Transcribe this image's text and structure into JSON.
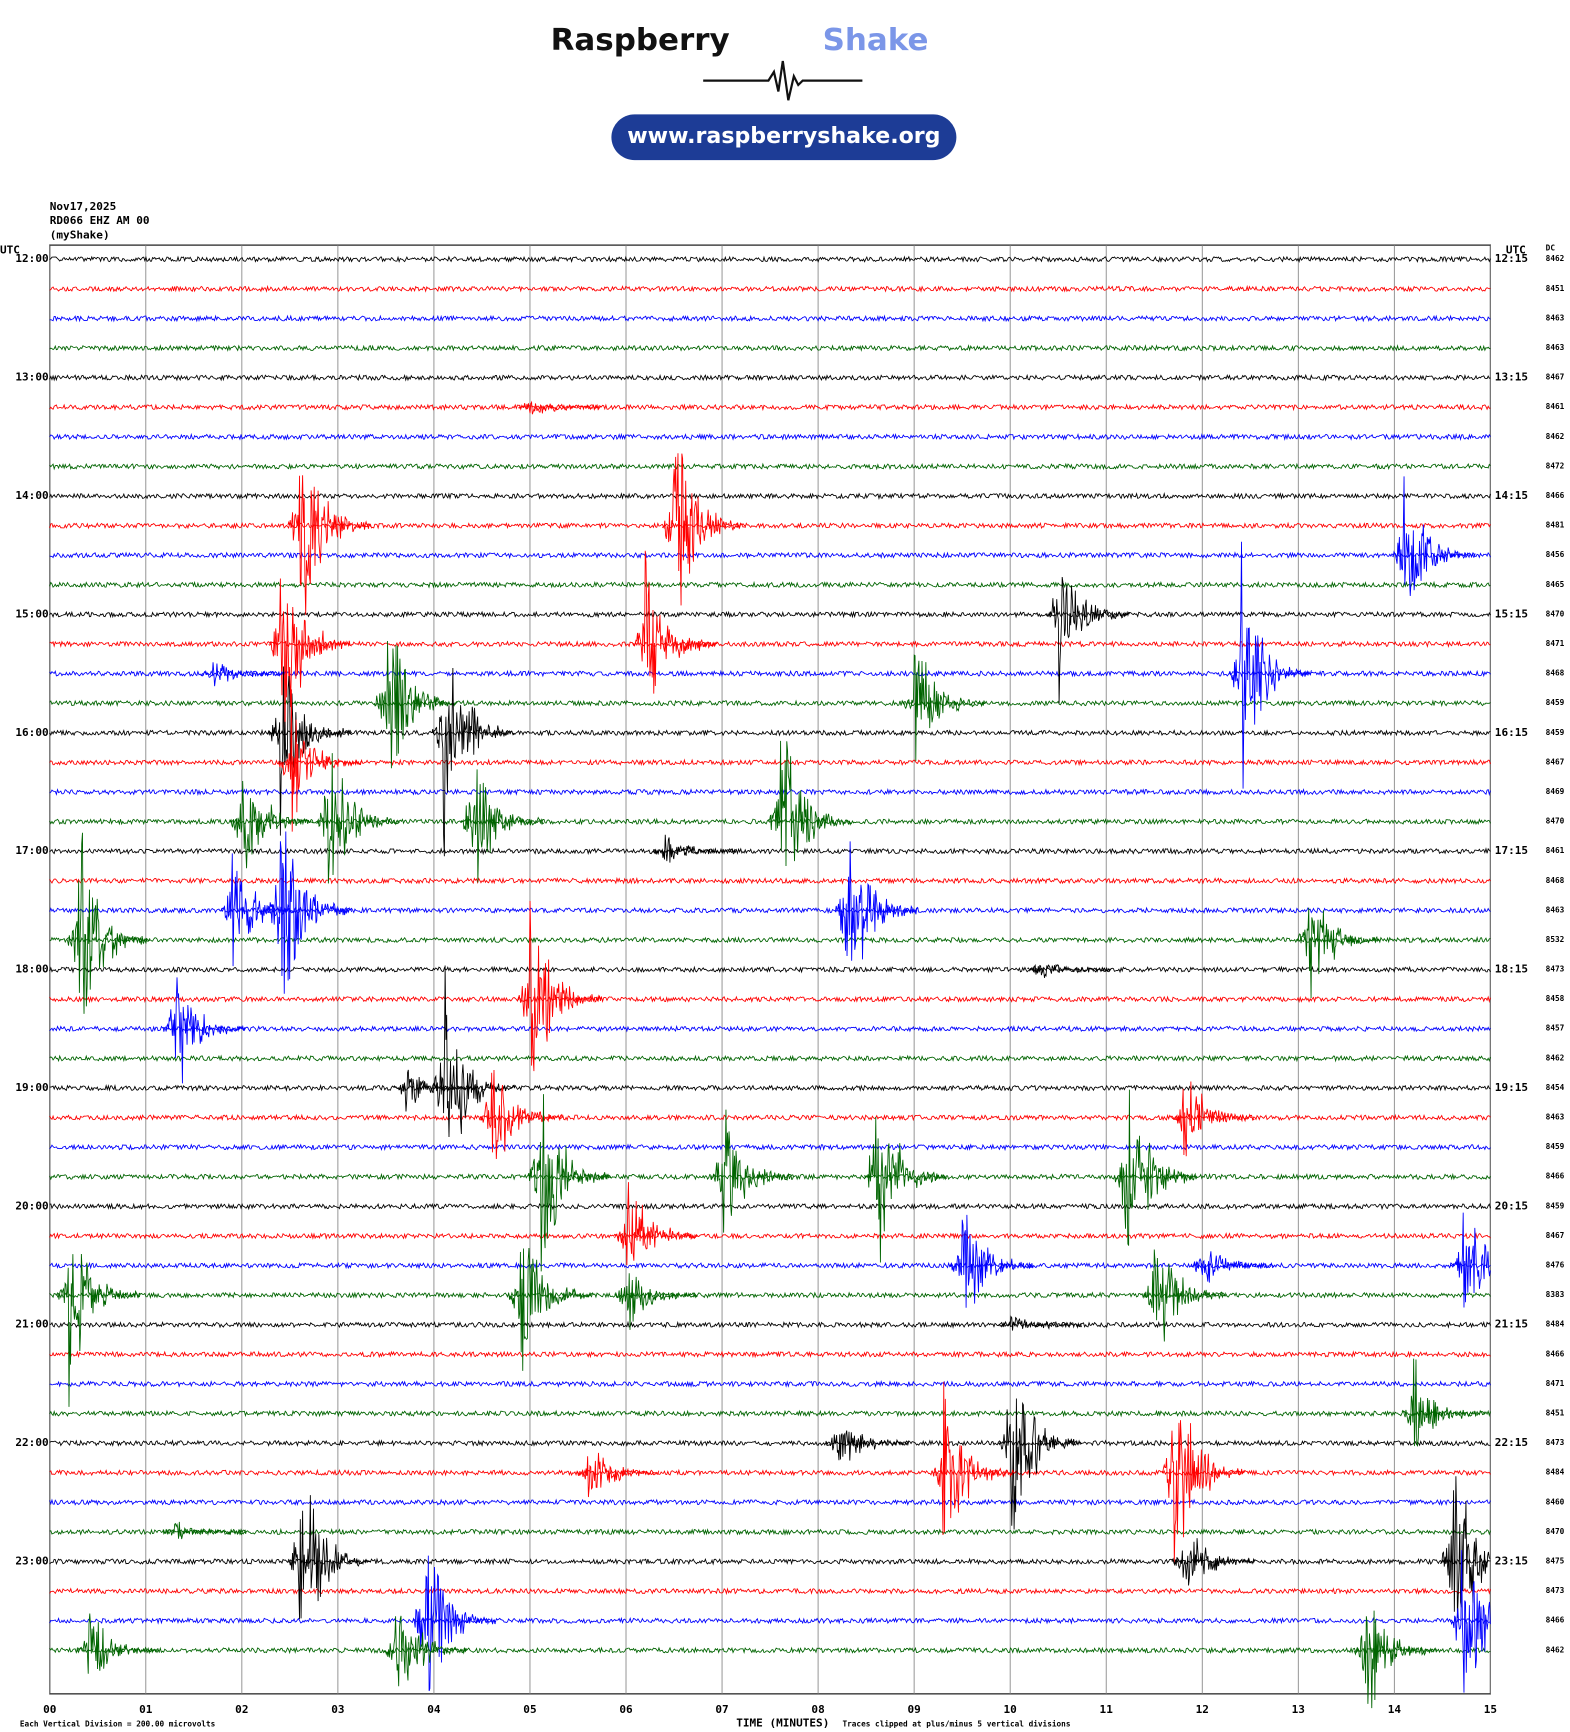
{
  "chart_data": {
    "type": "helicorder",
    "logo_word_1": "Raspberry",
    "logo_word_2": "Shake",
    "url": "www.raspberryshake.org",
    "date": "Nov17,2025",
    "station": "RD066 EHZ AM 00",
    "source": "(myShake)",
    "left_unit": "UTC",
    "right_unit": "UTC",
    "dc_header": "DC",
    "left_labels": [
      "12:00",
      "13:00",
      "14:00",
      "15:00",
      "16:00",
      "17:00",
      "18:00",
      "19:00",
      "20:00",
      "21:00",
      "22:00",
      "23:00"
    ],
    "right_labels": [
      "12:15",
      "13:15",
      "14:15",
      "15:15",
      "16:15",
      "17:15",
      "18:15",
      "19:15",
      "20:15",
      "21:15",
      "22:15",
      "23:15"
    ],
    "dc": [
      "8462",
      "8451",
      "8463",
      "8463",
      "8467",
      "8461",
      "8462",
      "8472",
      "8466",
      "8481",
      "8456",
      "8465",
      "8470",
      "8471",
      "8468",
      "8459",
      "8459",
      "8467",
      "8469",
      "8470",
      "8461",
      "8468",
      "8463",
      "8532",
      "8473",
      "8458",
      "8457",
      "8462",
      "8454",
      "8463",
      "8459",
      "8466",
      "8459",
      "8467",
      "8476",
      "8383",
      "8484",
      "8466",
      "8471",
      "8451",
      "8473",
      "8484",
      "8460",
      "8470",
      "8475",
      "8473",
      "8466",
      "8462"
    ],
    "colors": [
      "#000000",
      "#ff0000",
      "#0000ff",
      "#006400"
    ],
    "xlim": [
      0,
      15
    ],
    "xticks": [
      {
        "value": 0,
        "label": "00"
      },
      {
        "value": 1,
        "label": "01"
      },
      {
        "value": 2,
        "label": "02"
      },
      {
        "value": 3,
        "label": "03"
      },
      {
        "value": 4,
        "label": "04"
      },
      {
        "value": 5,
        "label": "05"
      },
      {
        "value": 6,
        "label": "06"
      },
      {
        "value": 7,
        "label": "07"
      },
      {
        "value": 8,
        "label": "08"
      },
      {
        "value": 9,
        "label": "09"
      },
      {
        "value": 10,
        "label": "10"
      },
      {
        "value": 11,
        "label": "11"
      },
      {
        "value": 12,
        "label": "12"
      },
      {
        "value": 13,
        "label": "13"
      },
      {
        "value": 14,
        "label": "14"
      },
      {
        "value": 15,
        "label": "15"
      }
    ],
    "xlabel": "TIME (MINUTES)",
    "footnote_left": "Each Vertical Division =  200.00 microvolts",
    "footnote_right": "Traces clipped at plus/minus 5 vertical divisions",
    "clip_divisions": 5,
    "noise_divisions": 0.08,
    "events": [
      {
        "row": 5,
        "minute": 5.0,
        "amplitude": 0.5
      },
      {
        "row": 9,
        "minute": 2.6,
        "amplitude": 5
      },
      {
        "row": 9,
        "minute": 6.5,
        "amplitude": 5
      },
      {
        "row": 10,
        "minute": 14.1,
        "amplitude": 4
      },
      {
        "row": 12,
        "minute": 10.5,
        "amplitude": 3.5
      },
      {
        "row": 13,
        "minute": 6.2,
        "amplitude": 4.5
      },
      {
        "row": 13,
        "minute": 2.4,
        "amplitude": 5
      },
      {
        "row": 14,
        "minute": 12.4,
        "amplitude": 5
      },
      {
        "row": 14,
        "minute": 1.7,
        "amplitude": 0.6
      },
      {
        "row": 15,
        "minute": 3.5,
        "amplitude": 5
      },
      {
        "row": 15,
        "minute": 9.0,
        "amplitude": 3
      },
      {
        "row": 16,
        "minute": 4.1,
        "amplitude": 5
      },
      {
        "row": 16,
        "minute": 2.4,
        "amplitude": 4
      },
      {
        "row": 17,
        "minute": 2.5,
        "amplitude": 3
      },
      {
        "row": 19,
        "minute": 7.6,
        "amplitude": 5
      },
      {
        "row": 19,
        "minute": 2.0,
        "amplitude": 3
      },
      {
        "row": 19,
        "minute": 2.9,
        "amplitude": 4
      },
      {
        "row": 19,
        "minute": 4.4,
        "amplitude": 4
      },
      {
        "row": 20,
        "minute": 6.4,
        "amplitude": 0.8
      },
      {
        "row": 22,
        "minute": 8.3,
        "amplitude": 5
      },
      {
        "row": 22,
        "minute": 2.4,
        "amplitude": 5
      },
      {
        "row": 22,
        "minute": 1.9,
        "amplitude": 3
      },
      {
        "row": 23,
        "minute": 0.3,
        "amplitude": 5
      },
      {
        "row": 23,
        "minute": 13.1,
        "amplitude": 3
      },
      {
        "row": 24,
        "minute": 10.3,
        "amplitude": 0.5
      },
      {
        "row": 25,
        "minute": 5.0,
        "amplitude": 5
      },
      {
        "row": 26,
        "minute": 1.3,
        "amplitude": 3
      },
      {
        "row": 28,
        "minute": 4.1,
        "amplitude": 5
      },
      {
        "row": 28,
        "minute": 3.7,
        "amplitude": 1
      },
      {
        "row": 29,
        "minute": 4.6,
        "amplitude": 3
      },
      {
        "row": 29,
        "minute": 11.8,
        "amplitude": 2.5
      },
      {
        "row": 31,
        "minute": 5.1,
        "amplitude": 5
      },
      {
        "row": 31,
        "minute": 8.6,
        "amplitude": 5
      },
      {
        "row": 31,
        "minute": 11.2,
        "amplitude": 5
      },
      {
        "row": 31,
        "minute": 7.0,
        "amplitude": 3
      },
      {
        "row": 33,
        "minute": 6.0,
        "amplitude": 3
      },
      {
        "row": 34,
        "minute": 9.5,
        "amplitude": 3
      },
      {
        "row": 34,
        "minute": 14.7,
        "amplitude": 3
      },
      {
        "row": 34,
        "minute": 12.0,
        "amplitude": 1
      },
      {
        "row": 35,
        "minute": 0.2,
        "amplitude": 4
      },
      {
        "row": 35,
        "minute": 4.9,
        "amplitude": 4
      },
      {
        "row": 35,
        "minute": 6.0,
        "amplitude": 2
      },
      {
        "row": 35,
        "minute": 11.5,
        "amplitude": 3
      },
      {
        "row": 36,
        "minute": 10.0,
        "amplitude": 0.6
      },
      {
        "row": 39,
        "minute": 14.2,
        "amplitude": 2.5
      },
      {
        "row": 40,
        "minute": 8.2,
        "amplitude": 1.5
      },
      {
        "row": 40,
        "minute": 10.0,
        "amplitude": 5
      },
      {
        "row": 41,
        "minute": 5.6,
        "amplitude": 1.5
      },
      {
        "row": 41,
        "minute": 9.3,
        "amplitude": 4
      },
      {
        "row": 41,
        "minute": 11.7,
        "amplitude": 5
      },
      {
        "row": 43,
        "minute": 1.3,
        "amplitude": 0.5
      },
      {
        "row": 44,
        "minute": 2.6,
        "amplitude": 5
      },
      {
        "row": 44,
        "minute": 11.8,
        "amplitude": 2
      },
      {
        "row": 44,
        "minute": 14.6,
        "amplitude": 5
      },
      {
        "row": 46,
        "minute": 3.9,
        "amplitude": 5
      },
      {
        "row": 46,
        "minute": 14.7,
        "amplitude": 4
      },
      {
        "row": 47,
        "minute": 3.6,
        "amplitude": 3
      },
      {
        "row": 47,
        "minute": 13.7,
        "amplitude": 3
      },
      {
        "row": 47,
        "minute": 0.4,
        "amplitude": 2
      }
    ]
  }
}
